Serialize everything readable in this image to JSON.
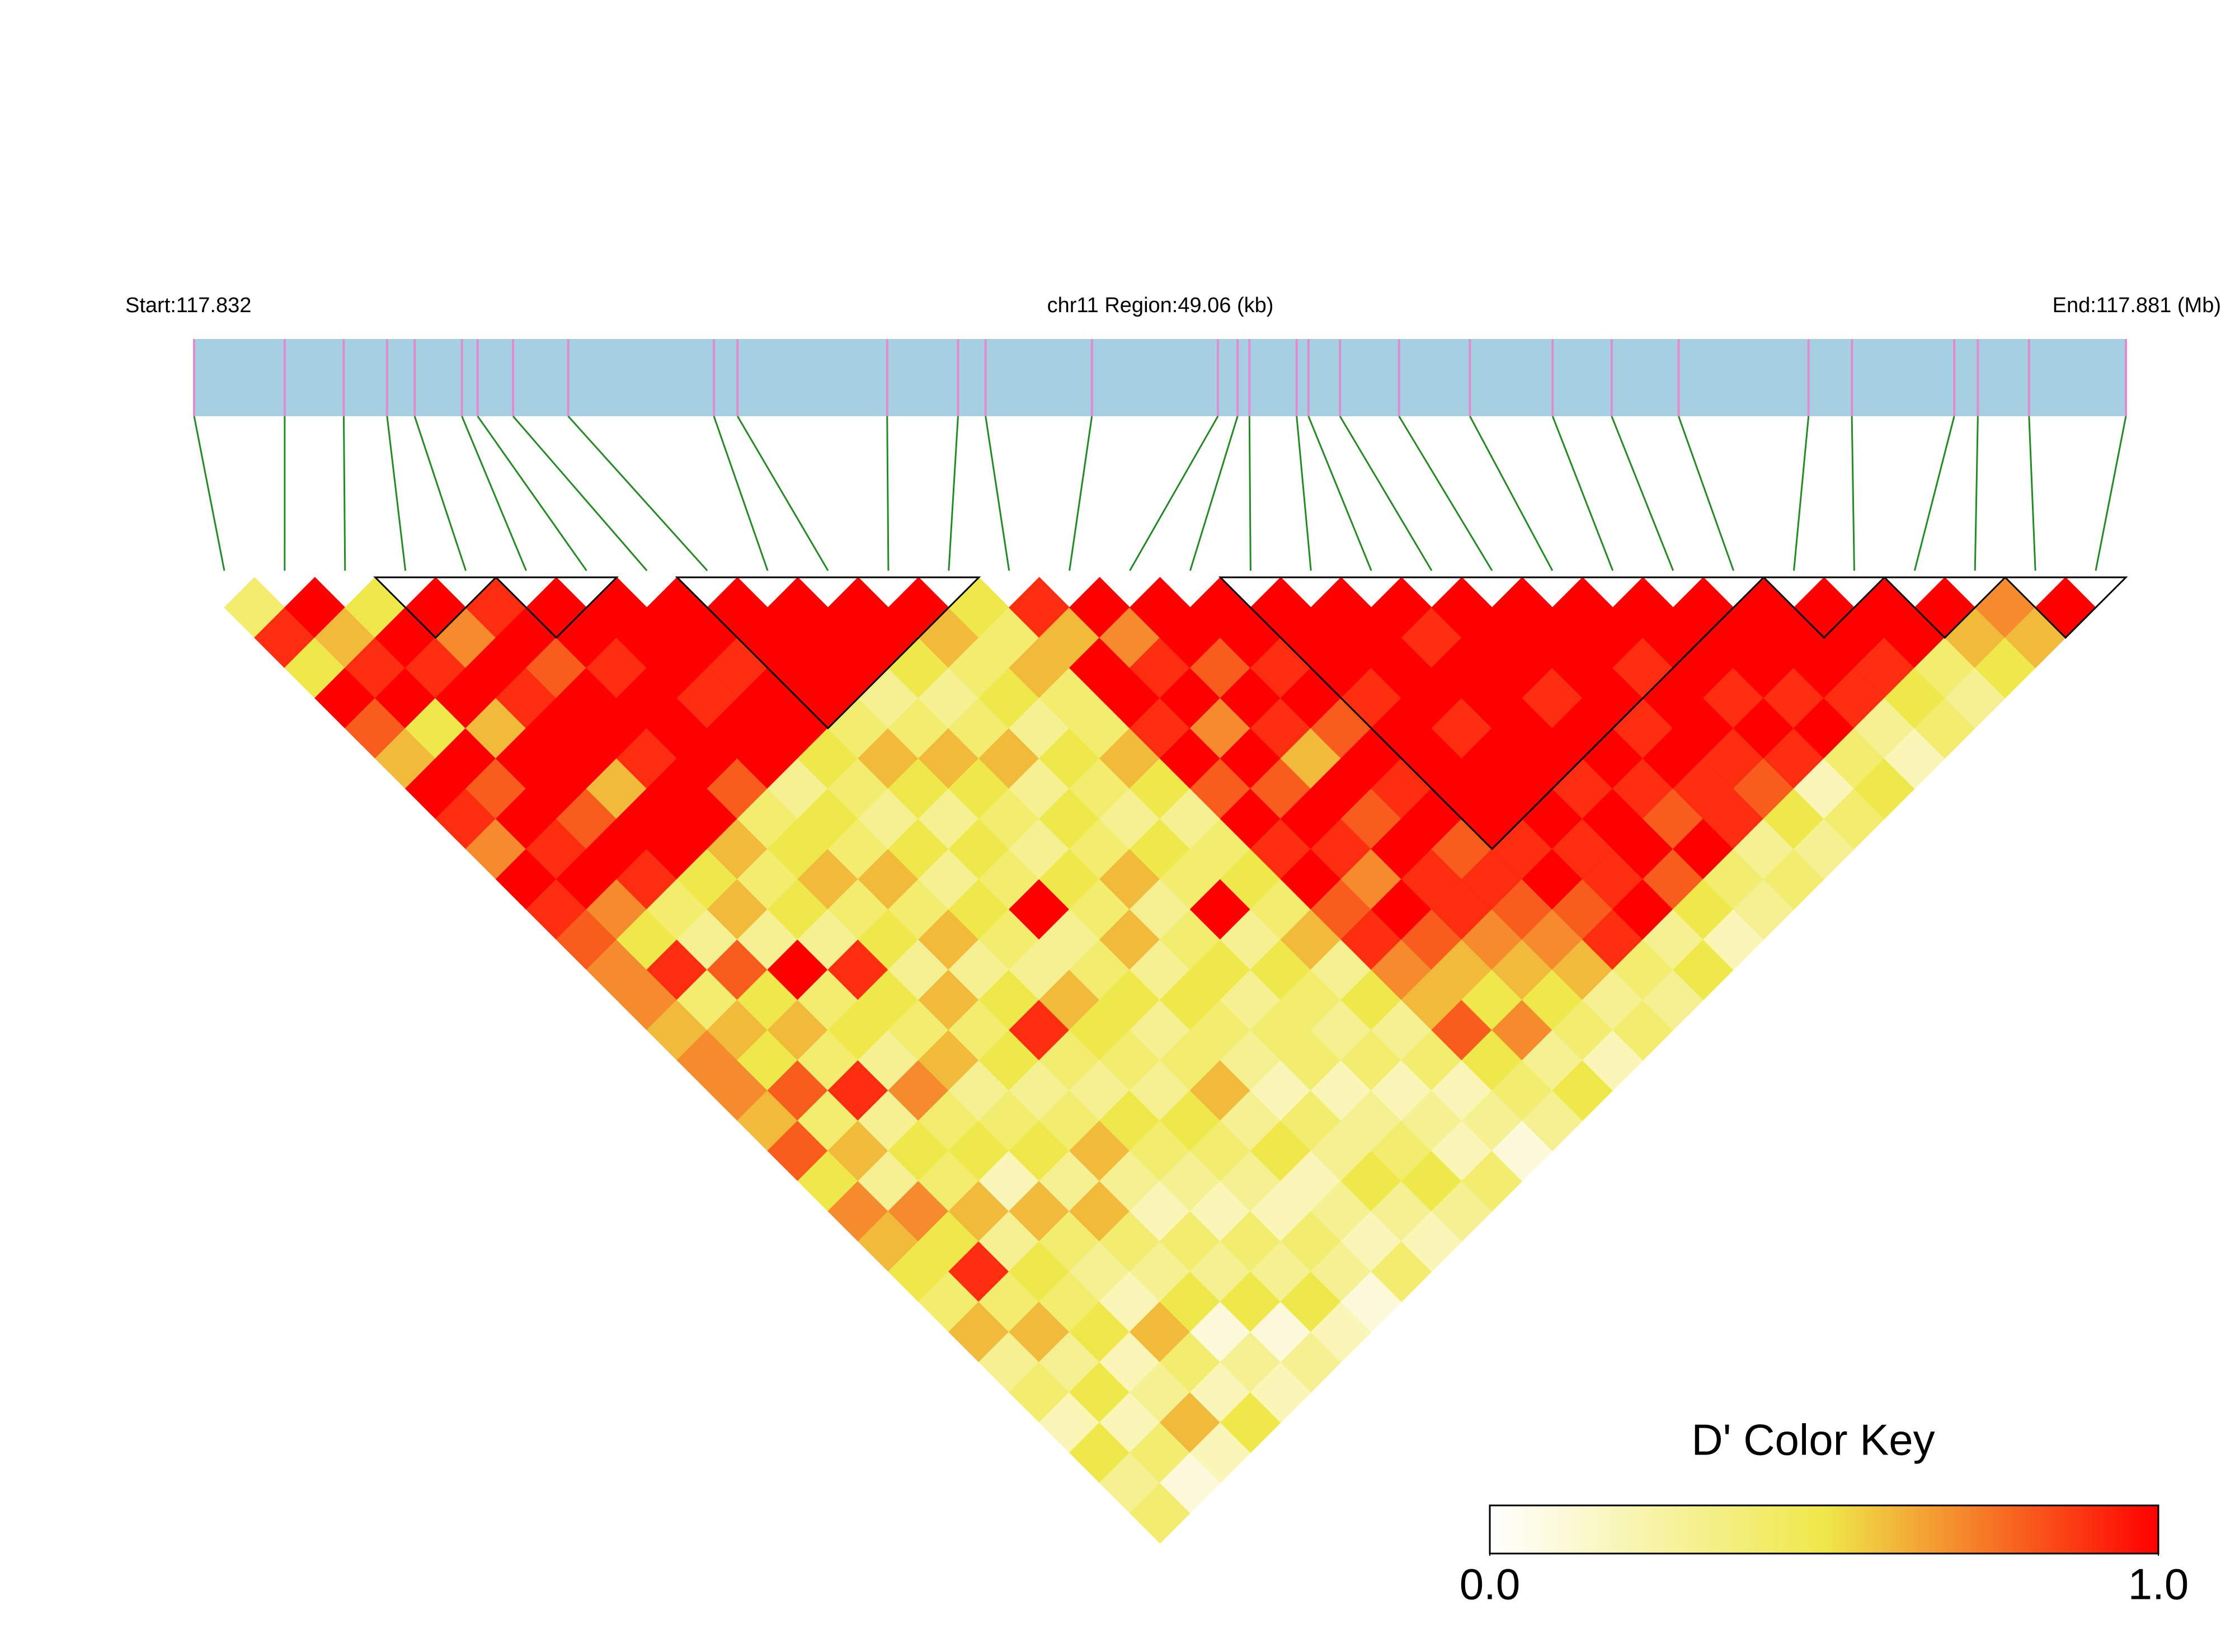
{
  "chart_data": {
    "type": "ld_heatmap",
    "start_label": "Start:117.832",
    "region_label": "chr11 Region:49.06 (kb)",
    "end_label": "End:117.881 (Mb)",
    "key_title": "D' Color Key",
    "xlim": [
      0,
      49.06
    ],
    "positions": [
      0,
      2.3,
      3.8,
      4.9,
      5.6,
      6.8,
      7.2,
      8.1,
      9.5,
      13.2,
      13.8,
      17.6,
      19.4,
      20.1,
      22.8,
      26.0,
      26.5,
      26.8,
      28.0,
      28.3,
      29.1,
      30.6,
      32.4,
      34.5,
      36.0,
      37.7,
      41.0,
      42.1,
      44.7,
      45.3,
      46.6,
      49.06
    ],
    "bar_color": "#a7cfe2",
    "snp_color": "#e38ad2",
    "link_color": "#228b22",
    "colorscale": [
      "#ffffff",
      "#efe84a",
      "#ff0000"
    ],
    "zlim": [
      0,
      1
    ],
    "key_ticks": [
      {
        "value": 0,
        "label": "0.0"
      },
      {
        "value": 1,
        "label": "1.0"
      }
    ],
    "blocks": [
      [
        3,
        4
      ],
      [
        5,
        6
      ],
      [
        8,
        12
      ],
      [
        17,
        25
      ],
      [
        26,
        27
      ],
      [
        28,
        29
      ],
      [
        30,
        31
      ]
    ],
    "dprime": [
      [
        0.4,
        0.9,
        0.5,
        1,
        0.8,
        0.6,
        1,
        0.9,
        0.7,
        1,
        0.9,
        0.8,
        0.7,
        0.7,
        0.6,
        0.7,
        0.7,
        0.6,
        0.8,
        0.5,
        0.7,
        0.6,
        0.5,
        0.4,
        0.6,
        0.3,
        0.4,
        0.2,
        0.5,
        0.3,
        0.4
      ],
      [
        1,
        0.6,
        0.9,
        1,
        0.5,
        1,
        0.8,
        1,
        0.9,
        1,
        0.7,
        0.5,
        0.9,
        0.4,
        0.6,
        0.5,
        0.8,
        0.4,
        0.6,
        0.3,
        0.7,
        0.5,
        0.9,
        0.4,
        0.6,
        0.3,
        0.5,
        0.2,
        0.4,
        0.1
      ],
      [
        0.5,
        1,
        0.9,
        1,
        0.6,
        1,
        1,
        0.8,
        1,
        0.9,
        0.4,
        0.3,
        0.8,
        0.5,
        0.6,
        0.4,
        0.9,
        0.3,
        0.5,
        0.4,
        0.6,
        0.3,
        0.5,
        0.4,
        0.5,
        0.2,
        0.3,
        0.6,
        0.2
      ],
      [
        1,
        0.7,
        1,
        0.9,
        1,
        1,
        0.6,
        1,
        1,
        0.5,
        0.6,
        0.3,
        1,
        0.4,
        0.5,
        0.3,
        0.7,
        0.4,
        0.5,
        0.2,
        0.6,
        0.4,
        0.3,
        0.2,
        0.6,
        0.4,
        0.2,
        0.5
      ],
      [
        0.9,
        1,
        0.8,
        1,
        1,
        0.9,
        1,
        1,
        0.6,
        0.4,
        0.5,
        0.3,
        0.9,
        0.5,
        0.4,
        0.6,
        0.3,
        0.4,
        0.5,
        0.3,
        0.6,
        0.4,
        0.3,
        0.5,
        0.1,
        0.3,
        0.2
      ],
      [
        1,
        1,
        0.9,
        1,
        1,
        1,
        0.8,
        0.4,
        0.5,
        0.6,
        0.4,
        0.5,
        0.3,
        0.6,
        0.4,
        0.5,
        0.3,
        0.4,
        0.6,
        0.3,
        0.2,
        0.4,
        0.3,
        0.5,
        0.1,
        0.3
      ],
      [
        1,
        1,
        1,
        0.9,
        1,
        1,
        0.3,
        0.5,
        0.4,
        0.6,
        0.4,
        0.6,
        0.3,
        0.5,
        0.9,
        0.4,
        0.3,
        0.5,
        0.4,
        0.3,
        0.2,
        0.4,
        0.3,
        0.5,
        0.2
      ],
      [
        1,
        1,
        0.9,
        1,
        1,
        0.5,
        0.4,
        0.3,
        0.5,
        0.3,
        0.5,
        0.4,
        0.3,
        0.6,
        0.5,
        0.4,
        0.3,
        0.5,
        0.4,
        0.3,
        0.2,
        0.4,
        0.3,
        0.1
      ],
      [
        1,
        1,
        1,
        1,
        0.4,
        0.6,
        0.5,
        0.3,
        0.5,
        0.4,
        1,
        0.3,
        0.4,
        0.5,
        0.3,
        0.4,
        0.6,
        0.3,
        0.5,
        0.2,
        0.3,
        0.2,
        0.4
      ],
      [
        1,
        1,
        1,
        0.3,
        0.4,
        0.6,
        0.5,
        0.4,
        0.3,
        0.5,
        0.4,
        0.6,
        0.3,
        0.5,
        0.4,
        0.3,
        0.2,
        0.4,
        0.3,
        0.5,
        0.3,
        0.2
      ],
      [
        1,
        1,
        0.5,
        0.3,
        0.4,
        0.6,
        0.3,
        0.5,
        0.4,
        0.6,
        0.3,
        0.4,
        0.5,
        0.3,
        0.4,
        0.4,
        0.2,
        0.3,
        0.4,
        0.5,
        0.3
      ],
      [
        1,
        0.6,
        0.4,
        0.5,
        0.3,
        0.5,
        0.4,
        0.3,
        0.5,
        0.4,
        1,
        0.3,
        0.5,
        0.4,
        0.3,
        0.4,
        0.2,
        0.3,
        0.2,
        0.4
      ],
      [
        0.5,
        0.4,
        0.6,
        0.4,
        0.4,
        0.6,
        0.5,
        0.3,
        0.4,
        0.5,
        0.4,
        0.6,
        0.3,
        0.5,
        0.3,
        0.4,
        0.2,
        0.3,
        0.1
      ],
      [
        0.9,
        0.6,
        1,
        1,
        0.9,
        1,
        0.8,
        1,
        0.9,
        1,
        0.8,
        0.9,
        0.7,
        0.6,
        0.8,
        0.5,
        0.4,
        0.3
      ],
      [
        1,
        0.7,
        0.9,
        1,
        0.7,
        1,
        0.8,
        1,
        0.9,
        0.7,
        1,
        0.8,
        0.6,
        0.5,
        0.7,
        0.3,
        0.5
      ],
      [
        1,
        1,
        0.8,
        1,
        0.9,
        0.6,
        1,
        0.8,
        1,
        0.9,
        0.9,
        0.7,
        0.6,
        0.5,
        0.4,
        0.2
      ],
      [
        1,
        1,
        0.9,
        1,
        0.8,
        1,
        0.9,
        1,
        0.8,
        0.9,
        0.8,
        0.7,
        0.6,
        0.3,
        0.4
      ],
      [
        1,
        1,
        1,
        0.9,
        1,
        1,
        1,
        1,
        0.9,
        1,
        0.8,
        0.9,
        0.4,
        0.3
      ],
      [
        1,
        1,
        1,
        1,
        0.9,
        1,
        1,
        1,
        0.9,
        0.9,
        1,
        0.3,
        0.5
      ],
      [
        1,
        0.9,
        1,
        1,
        1,
        1,
        0.9,
        1,
        1,
        0.8,
        0.5,
        0.2
      ],
      [
        1,
        1,
        1,
        0.9,
        1,
        1,
        0.9,
        0.8,
        1,
        0.4,
        0.3
      ],
      [
        1,
        1,
        1,
        1,
        0.9,
        1,
        0.9,
        0.9,
        0.3,
        0.4
      ],
      [
        1,
        1,
        0.9,
        1,
        1,
        0.9,
        0.8,
        0.5,
        0.3
      ],
      [
        1,
        1,
        1,
        0.9,
        1,
        0.9,
        0.2,
        0.4
      ],
      [
        1,
        1,
        1,
        0.9,
        1,
        0.4,
        0.5
      ],
      [
        1,
        1,
        1,
        0.9,
        0.3,
        0.2
      ],
      [
        1,
        1,
        0.9,
        0.5,
        0.4
      ],
      [
        1,
        1,
        0.4,
        0.3
      ],
      [
        1,
        0.6,
        0.5
      ],
      [
        0.7,
        0.6
      ],
      [
        1
      ]
    ]
  }
}
